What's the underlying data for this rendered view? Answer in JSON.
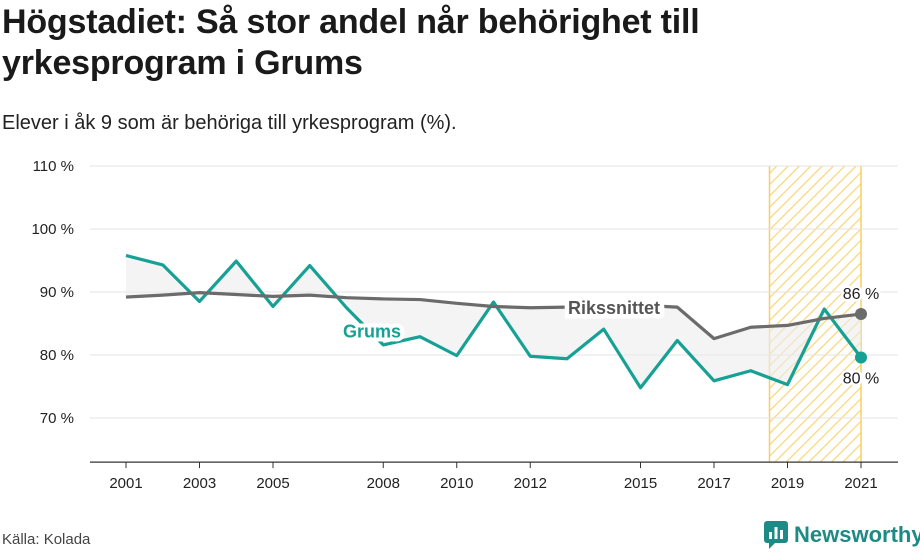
{
  "title": "Högstadiet: Så stor andel når behörighet till yrkesprogram i Grums",
  "subtitle": "Elever i åk 9 som är behöriga till yrkesprogram (%).",
  "source": "Källa: Kolada",
  "brand": {
    "name": "Newsworthy",
    "color": "#1d8a86"
  },
  "chart_data": {
    "type": "line",
    "x": [
      2001,
      2002,
      2003,
      2004,
      2005,
      2006,
      2007,
      2008,
      2009,
      2010,
      2011,
      2012,
      2013,
      2014,
      2015,
      2016,
      2017,
      2018,
      2019,
      2020,
      2021
    ],
    "x_ticks": [
      "2001",
      "2003",
      "2005",
      "2008",
      "2010",
      "2012",
      "2015",
      "2017",
      "2019",
      "2021"
    ],
    "y_ticks": [
      "70 %",
      "80 %",
      "90 %",
      "100 %",
      "110 %"
    ],
    "ylim": [
      63,
      110
    ],
    "series": [
      {
        "name": "Grums",
        "color": "#17a094",
        "values": [
          95.8,
          94.3,
          88.5,
          94.9,
          87.7,
          94.2,
          87.5,
          81.6,
          82.9,
          79.9,
          88.4,
          79.8,
          79.4,
          84.1,
          74.8,
          82.3,
          75.9,
          77.5,
          75.3,
          87.3,
          79.6
        ],
        "end_label": "80 %"
      },
      {
        "name": "Rikssnittet",
        "color": "#6b6b6b",
        "values": [
          89.2,
          89.5,
          89.9,
          89.6,
          89.3,
          89.5,
          89.1,
          88.9,
          88.8,
          88.2,
          87.7,
          87.5,
          87.6,
          87.8,
          87.9,
          87.6,
          82.6,
          84.4,
          84.7,
          85.8,
          86.5
        ],
        "end_label": "86 %"
      }
    ],
    "highlight": {
      "from": 2019,
      "to": 2021,
      "color": "#f7cf62"
    }
  }
}
